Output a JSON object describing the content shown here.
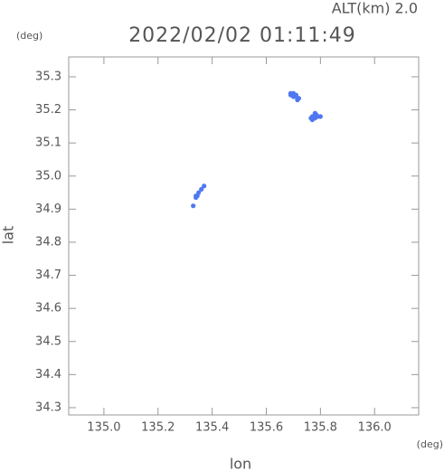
{
  "chart_data": {
    "type": "scatter",
    "title": "2022/02/02 01:11:49",
    "subtitle": "ALT(km) 2.0",
    "x_unit": "(deg)",
    "y_unit": "(deg)",
    "x_label": "lon",
    "y_label": "lat",
    "color": "#4f78f0",
    "x": [
      135.69,
      135.7,
      135.71,
      135.7,
      135.71,
      135.72,
      135.715,
      135.69,
      135.77,
      135.78,
      135.79,
      135.78,
      135.77,
      135.765,
      135.785,
      135.8,
      135.37,
      135.36,
      135.35,
      135.345,
      135.34,
      135.34,
      135.33
    ],
    "values": [
      35.25,
      35.25,
      35.245,
      35.24,
      35.24,
      35.235,
      35.23,
      35.245,
      35.18,
      35.19,
      35.18,
      35.175,
      35.17,
      35.175,
      35.185,
      35.18,
      34.97,
      34.96,
      34.95,
      34.94,
      34.935,
      34.94,
      34.91
    ],
    "xlim": [
      134.87,
      136.163
    ],
    "ylim": [
      34.278,
      35.36
    ],
    "xticks": [
      {
        "value": 135,
        "label": "135.0"
      },
      135.2,
      135.4,
      135.6,
      135.8,
      {
        "value": 136,
        "label": "136.0"
      }
    ],
    "yticks": [
      34.3,
      34.4,
      34.5,
      34.6,
      34.7,
      34.8,
      34.9,
      {
        "value": 35,
        "label": "35.0"
      },
      35.1,
      35.2,
      35.3
    ]
  }
}
